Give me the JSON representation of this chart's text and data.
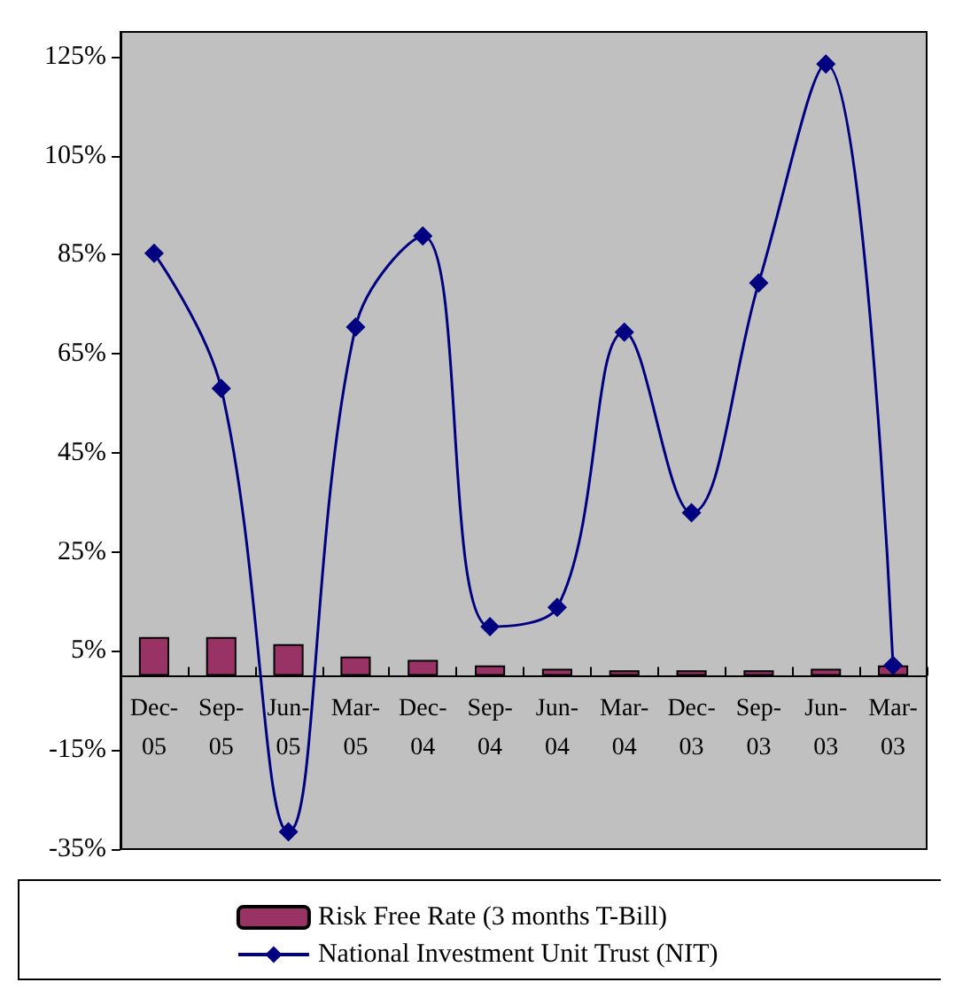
{
  "chart_data": {
    "type": "bar",
    "categories": [
      "Dec-05",
      "Sep-05",
      "Jun-05",
      "Mar-05",
      "Dec-04",
      "Sep-04",
      "Jun-04",
      "Mar-04",
      "Dec-03",
      "Sep-03",
      "Jun-03",
      "Mar-03"
    ],
    "series": [
      {
        "name": "Risk Free Rate (3 months T-Bill)",
        "color": "#993366",
        "values": [
          7.8,
          7.8,
          6.4,
          3.9,
          3.2,
          2.1,
          1.4,
          1.1,
          1.1,
          1.1,
          1.4,
          2.1
        ]
      },
      {
        "name": "National Investment Unit Trust (NIT)",
        "type": "line",
        "color": "#000080",
        "marker": "diamond",
        "values": [
          85.3,
          58,
          -31.5,
          70.4,
          88.8,
          9.9,
          13.8,
          69.4,
          32.9,
          79.3,
          123.5,
          2.1
        ]
      }
    ],
    "ylim": [
      -35,
      130
    ],
    "yticks": [
      {
        "value": -35,
        "label": "-35%"
      },
      {
        "value": -15,
        "label": "-15%"
      },
      {
        "value": 5,
        "label": "5%"
      },
      {
        "value": 25,
        "label": "25%"
      },
      {
        "value": 45,
        "label": "45%"
      },
      {
        "value": 65,
        "label": "65%"
      },
      {
        "value": 85,
        "label": "85%"
      },
      {
        "value": 105,
        "label": "105%"
      },
      {
        "value": 125,
        "label": "125%"
      }
    ],
    "grid": false,
    "legend": "bottom"
  }
}
